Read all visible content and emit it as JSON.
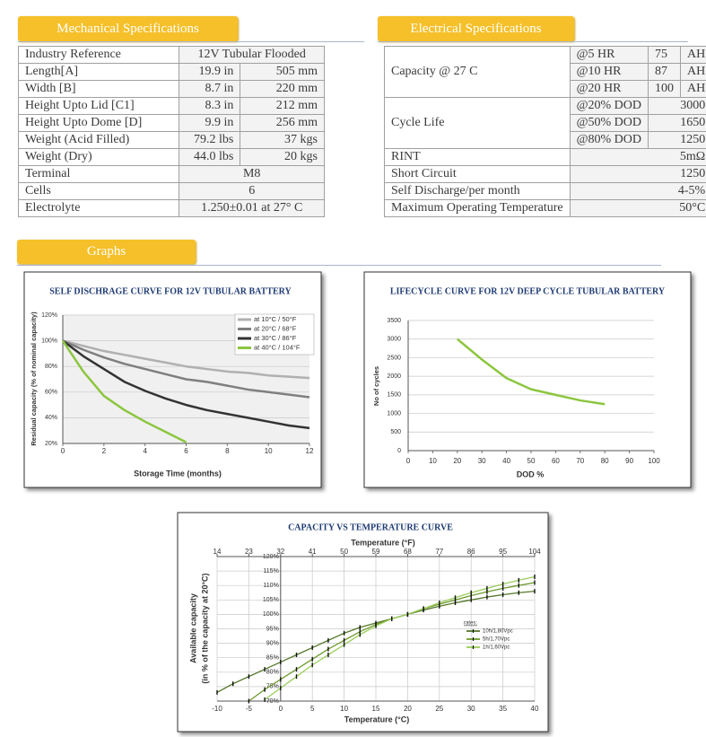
{
  "mechanical": {
    "title": "Mechanical Specifications",
    "rows": [
      [
        "Industry Reference",
        "12V Tubular Flooded"
      ],
      [
        "Length[A]",
        "19.9 in",
        "505 mm"
      ],
      [
        "Width [B]",
        "8.7 in",
        "220 mm"
      ],
      [
        "Height Upto Lid [C1]",
        "8.3 in",
        "212 mm"
      ],
      [
        "Height Upto Dome [D]",
        "9.9 in",
        "256 mm"
      ],
      [
        "Weight (Acid Filled)",
        "79.2 lbs",
        "37 kgs"
      ],
      [
        "Weight (Dry)",
        "44.0 lbs",
        "20 kgs"
      ],
      [
        "Terminal",
        "M8"
      ],
      [
        "Cells",
        "6"
      ],
      [
        "Electrolyte",
        "1.250±0.01 at 27° C"
      ]
    ]
  },
  "electrical": {
    "title": "Electrical Specifications",
    "capacity": {
      "label": "Capacity @ 27 C",
      "rows": [
        [
          "@5 HR",
          "75",
          "AH"
        ],
        [
          "@10 HR",
          "87",
          "AH"
        ],
        [
          "@20 HR",
          "100",
          "AH"
        ]
      ]
    },
    "cycle_life": {
      "label": "Cycle Life",
      "rows": [
        [
          "@20% DOD",
          "3000"
        ],
        [
          "@50% DOD",
          "1650"
        ],
        [
          "@80% DOD",
          "1250"
        ]
      ]
    },
    "rows": [
      [
        "RINT",
        "5mΩ"
      ],
      [
        "Short Circuit",
        "1250"
      ],
      [
        "Self Discharge/per month",
        "4-5%"
      ],
      [
        "Maximum Operating Temperature",
        "50°C"
      ]
    ]
  },
  "graphs": {
    "title": "Graphs"
  },
  "chart_data": [
    {
      "type": "line",
      "title": "SELF DISCHRAGE CURVE FOR 12V TUBULAR BATTERY",
      "xlabel": "Storage Time (months)",
      "ylabel": "Residual capacity (% of nominal capacity)",
      "x": [
        0,
        1,
        2,
        3,
        4,
        5,
        6,
        7,
        8,
        9,
        10,
        11,
        12
      ],
      "xlim": [
        0,
        12
      ],
      "xticks": [
        0,
        2,
        4,
        6,
        8,
        10,
        12
      ],
      "ylim": [
        20,
        120
      ],
      "yticks": [
        {
          "value": 20,
          "label": "20%"
        },
        {
          "value": 40,
          "label": "40%"
        },
        {
          "value": 60,
          "label": "60%"
        },
        {
          "value": 80,
          "label": "80%"
        },
        {
          "value": 100,
          "label": "100%"
        },
        {
          "value": 120,
          "label": "120%"
        }
      ],
      "grid": "y",
      "legend": "upper right",
      "series": [
        {
          "name": "at 10°C / 50°F",
          "color": "#b0b0b0",
          "values": [
            100,
            96,
            92,
            89,
            86,
            83,
            80,
            78,
            76,
            75,
            73,
            72,
            71
          ]
        },
        {
          "name": "at 20°C / 68°F",
          "color": "#7f7f7f",
          "values": [
            100,
            93,
            87,
            82,
            78,
            74,
            70,
            68,
            65,
            62,
            60,
            58,
            56
          ]
        },
        {
          "name": "at 30°C / 86°F",
          "color": "#333333",
          "values": [
            100,
            88,
            78,
            68,
            61,
            55,
            50,
            46,
            43,
            40,
            37,
            34,
            32
          ]
        },
        {
          "name": "at 40°C / 104°F",
          "color": "#8cc63f",
          "values": [
            100,
            76,
            57,
            46,
            37,
            29,
            21,
            null,
            null,
            null,
            null,
            null,
            null
          ]
        }
      ]
    },
    {
      "type": "line",
      "title": "LIFECYCLE CURVE FOR 12V DEEP CYCLE TUBULAR BATTERY",
      "xlabel": "DOD %",
      "ylabel": "No of cycles",
      "x": [
        20,
        30,
        40,
        50,
        60,
        70,
        80
      ],
      "xlim": [
        0,
        100
      ],
      "xticks": [
        0,
        10,
        20,
        30,
        40,
        50,
        60,
        70,
        80,
        90,
        100
      ],
      "ylim": [
        0,
        3500
      ],
      "yticks": [
        0,
        500,
        1000,
        1500,
        2000,
        2500,
        3000,
        3500
      ],
      "grid": "y",
      "series": [
        {
          "color": "#8cc63f",
          "values": [
            3000,
            2450,
            1950,
            1650,
            1500,
            1350,
            1250
          ]
        }
      ]
    },
    {
      "type": "line",
      "title": "CAPACITY VS TEMPERATURE CURVE",
      "xlabel": "Temperature (°C)",
      "x2label": "Temperature (°F)",
      "ylabel": [
        "Available capacity",
        "(in % of the capacity at 20°C)"
      ],
      "x": [
        -10,
        -7.5,
        -5,
        -2.5,
        0,
        2.5,
        5,
        7.5,
        10,
        12.5,
        15,
        17.5,
        20,
        22.5,
        25,
        27.5,
        30,
        32.5,
        35,
        37.5,
        40
      ],
      "xlim": [
        -10,
        40
      ],
      "xticks": [
        -10,
        -5,
        0,
        5,
        10,
        15,
        20,
        25,
        30,
        35,
        40
      ],
      "x2lim": [
        14,
        104
      ],
      "x2ticks": [
        14,
        23,
        32,
        41,
        50,
        59,
        68,
        77,
        86,
        95,
        104
      ],
      "ylim": [
        70,
        120
      ],
      "yticks": [
        {
          "value": 70,
          "label": "70%"
        },
        {
          "value": 75,
          "label": "75%"
        },
        {
          "value": 80,
          "label": "80%"
        },
        {
          "value": 85,
          "label": "85%"
        },
        {
          "value": 90,
          "label": "90%"
        },
        {
          "value": 95,
          "label": "95%"
        },
        {
          "value": 100,
          "label": "100%"
        },
        {
          "value": 105,
          "label": "105%"
        },
        {
          "value": 110,
          "label": "110%"
        },
        {
          "value": 115,
          "label": "115%"
        },
        {
          "value": 120,
          "label": "120%"
        }
      ],
      "yaxis_position": 0,
      "grid": "both",
      "markers": true,
      "legend": "right",
      "legend_title": "rates:",
      "series": [
        {
          "name": "10h/1,80Vpc",
          "color": "#55772a",
          "values": [
            73,
            76,
            78.5,
            81,
            83.5,
            86,
            88.5,
            91,
            93.5,
            95.5,
            97,
            98.5,
            100,
            101.5,
            102.8,
            104,
            105,
            106,
            106.8,
            107.5,
            108
          ]
        },
        {
          "name": "5h/1,70Vpc",
          "color": "#6f9a2e",
          "values": [
            null,
            null,
            70,
            74,
            77.5,
            81,
            84.5,
            88,
            91,
            94,
            96.5,
            98.5,
            100,
            102,
            103.5,
            105,
            106.5,
            107.8,
            109,
            110,
            111
          ]
        },
        {
          "name": "1h/1,60Vpc",
          "color": "#9acd5a",
          "values": [
            null,
            null,
            null,
            70.5,
            74.5,
            78.5,
            82.5,
            86,
            89.5,
            93,
            96,
            98.5,
            100,
            102,
            104,
            105.8,
            107.5,
            109,
            110.5,
            111.8,
            113
          ]
        }
      ]
    }
  ]
}
